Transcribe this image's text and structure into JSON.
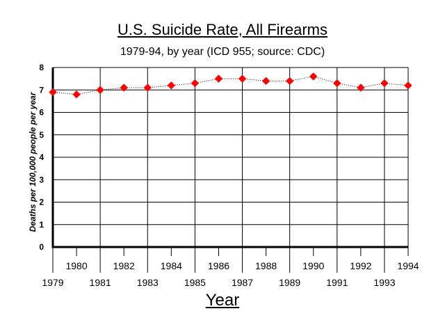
{
  "chart_data": {
    "type": "line",
    "title": "U.S. Suicide Rate, All Firearms",
    "subtitle": "1979-94, by year (ICD 955; source: CDC)",
    "xlabel": "Year",
    "ylabel": "Deaths per 100,000 people per year",
    "x": [
      1979,
      1980,
      1981,
      1982,
      1983,
      1984,
      1985,
      1986,
      1987,
      1988,
      1989,
      1990,
      1991,
      1992,
      1993,
      1994
    ],
    "series": [
      {
        "values": [
          6.9,
          6.8,
          7.0,
          7.1,
          7.1,
          7.2,
          7.3,
          7.5,
          7.5,
          7.4,
          7.4,
          7.6,
          7.3,
          7.1,
          7.3,
          7.2
        ]
      }
    ],
    "ylim": [
      0,
      8
    ],
    "yticks": [
      0,
      1,
      2,
      3,
      4,
      5,
      6,
      7,
      8
    ],
    "xlim": [
      1979,
      1994
    ],
    "grid": true,
    "marker_color": "#ff0000",
    "line_color": "#000000",
    "line_style": "dotted"
  }
}
